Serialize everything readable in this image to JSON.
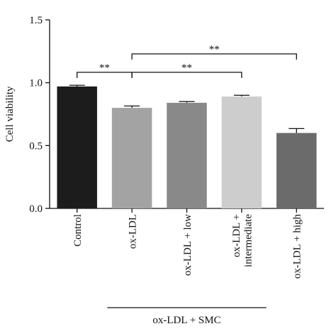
{
  "chart_data": {
    "type": "bar",
    "y_label": "Cell viability",
    "categories": [
      "Control",
      "ox-LDL",
      "ox-LDL + low",
      "ox-LDL +\nintermediate",
      "ox-LDL + high"
    ],
    "values": [
      0.97,
      0.8,
      0.84,
      0.89,
      0.6
    ],
    "errors": [
      0.01,
      0.015,
      0.01,
      0.01,
      0.035
    ],
    "colors": [
      "#1c1c1c",
      "#a3a3a3",
      "#898989",
      "#cdcdcd",
      "#6b6b6b"
    ],
    "ylim": [
      0,
      1.5
    ],
    "yticks": [
      {
        "value": 0,
        "label": "0.0"
      },
      {
        "value": 0.5,
        "label": "0.5"
      },
      {
        "value": 1,
        "label": "1.0"
      },
      {
        "value": 1.5,
        "label": "1.5"
      }
    ],
    "comparisons": [
      {
        "from": "Control",
        "to": "ox-LDL",
        "label": "**"
      },
      {
        "from": "ox-LDL",
        "to": "ox-LDL +\nintermediate",
        "label": "**"
      },
      {
        "from": "ox-LDL",
        "to": "ox-LDL + high",
        "label": "**"
      }
    ],
    "group": {
      "label": "ox-LDL + SMC",
      "from": "ox-LDL",
      "to": "ox-LDL +\nintermediate"
    }
  }
}
